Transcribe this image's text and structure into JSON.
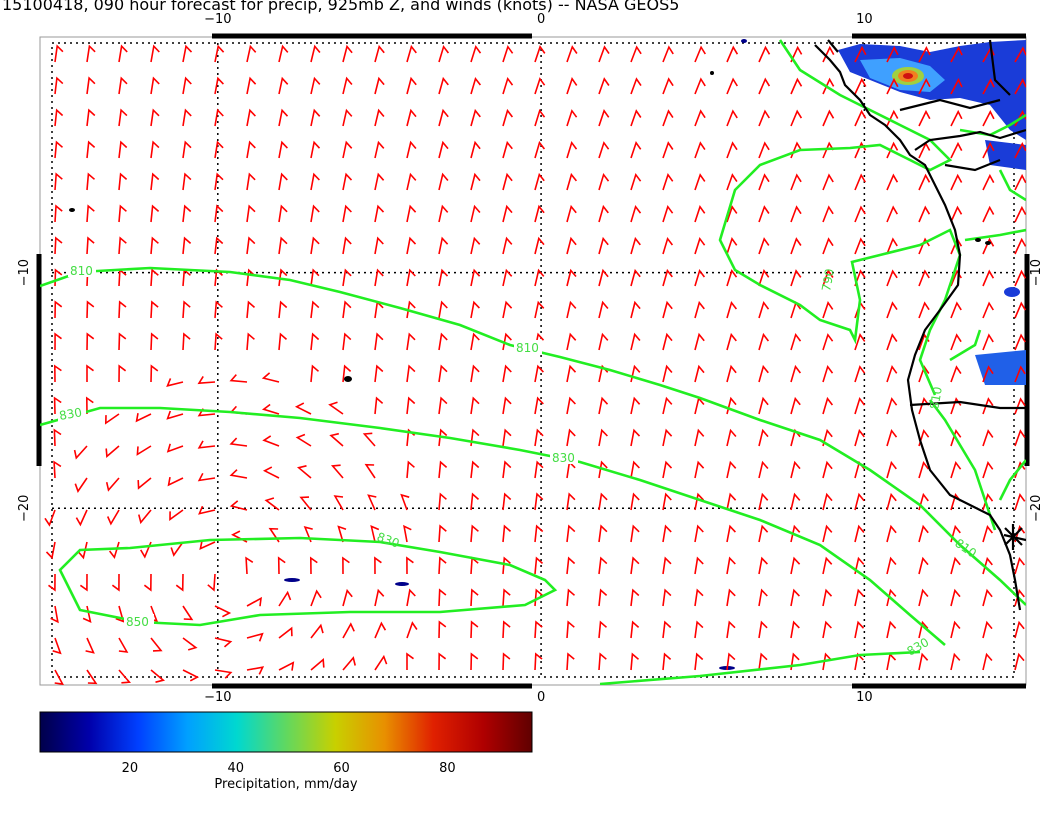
{
  "title": "15100418, 090 hour forecast for precip, 925mb Z, and winds (knots) -- NASA GEOS5",
  "map": {
    "lon_range": [
      -15.5,
      15
    ],
    "lat_range": [
      -27.5,
      0
    ],
    "x_ticks": [
      {
        "value": -10,
        "label": "−10"
      },
      {
        "value": 0,
        "label": "0"
      },
      {
        "value": 10,
        "label": "10"
      }
    ],
    "y_ticks": [
      {
        "value": -10,
        "label": "−10"
      },
      {
        "value": -20,
        "label": "−20"
      }
    ],
    "gridlines": "dotted",
    "wind_barb_color": "#ff0000",
    "contour_color": "#22ee22",
    "coastline_color": "#000000",
    "contour_labels": [
      "810",
      "810",
      "790",
      "830",
      "830",
      "830",
      "850",
      "810",
      "830",
      "810"
    ]
  },
  "colorbar": {
    "label": "Precipitation, mm/day",
    "ticks": [
      "20",
      "40",
      "60",
      "80"
    ],
    "colors": [
      "#00004a",
      "#0000aa",
      "#0040ff",
      "#00a0ff",
      "#00d8d0",
      "#60d860",
      "#c8d000",
      "#e89000",
      "#e02000",
      "#b00000",
      "#600000"
    ]
  }
}
